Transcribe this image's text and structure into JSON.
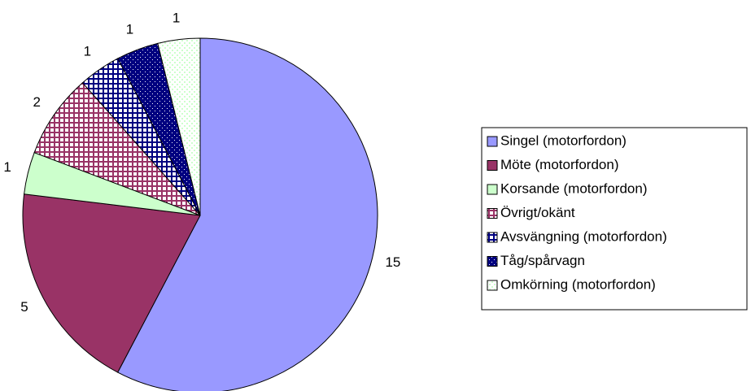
{
  "chart_data": {
    "type": "pie",
    "categories": [
      "Singel (motorfordon)",
      "Möte (motorfordon)",
      "Korsande (motorfordon)",
      "Övrigt/okänt",
      "Avsvängning (motorfordon)",
      "Tåg/spårvagn",
      "Omkörning (motorfordon)"
    ],
    "values": [
      15,
      5,
      1,
      2,
      1,
      1,
      1
    ],
    "colors": [
      "#9999ff",
      "#993366",
      "#ccffcc",
      "#993366",
      "#000080",
      "#000080",
      "#ccffcc"
    ],
    "legend": "right"
  }
}
